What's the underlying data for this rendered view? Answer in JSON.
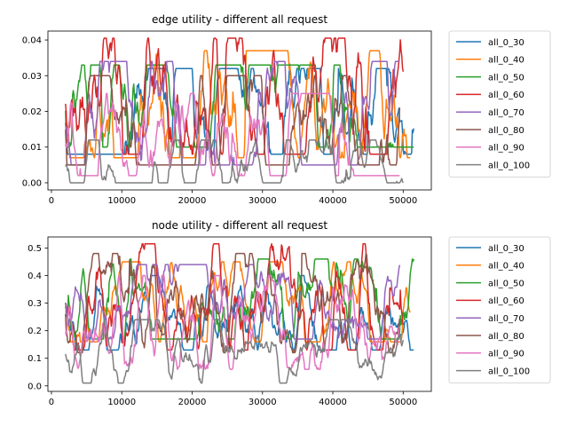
{
  "chart_data": [
    {
      "type": "line",
      "title": "edge utility - different all request",
      "xlabel": "",
      "ylabel": "",
      "xlim": [
        -500,
        54000
      ],
      "ylim": [
        -0.002,
        0.0425
      ],
      "xticks": [
        0,
        10000,
        20000,
        30000,
        40000,
        50000
      ],
      "xtick_labels": [
        "0",
        "10000",
        "20000",
        "30000",
        "40000",
        "50000"
      ],
      "yticks": [
        0.0,
        0.01,
        0.02,
        0.03,
        0.04
      ],
      "ytick_labels": [
        "0.00",
        "0.01",
        "0.02",
        "0.03",
        "0.04"
      ],
      "legend_position": "outside-right",
      "grid": false,
      "series": [
        {
          "name": "all_0_30",
          "color": "#1f77b4",
          "x_start": 2000,
          "x_end": 51500,
          "mean": 0.0195,
          "amp": 0.0085,
          "min": 0.008,
          "max": 0.032,
          "seed": 11
        },
        {
          "name": "all_0_40",
          "color": "#ff7f0e",
          "x_start": 2000,
          "x_end": 51000,
          "mean": 0.0195,
          "amp": 0.0085,
          "min": 0.007,
          "max": 0.037,
          "seed": 23
        },
        {
          "name": "all_0_50",
          "color": "#2ca02c",
          "x_start": 2000,
          "x_end": 51500,
          "mean": 0.021,
          "amp": 0.0085,
          "min": 0.01,
          "max": 0.033,
          "seed": 37
        },
        {
          "name": "all_0_60",
          "color": "#d62728",
          "x_start": 2000,
          "x_end": 50000,
          "mean": 0.021,
          "amp": 0.009,
          "min": 0.008,
          "max": 0.0405,
          "seed": 41
        },
        {
          "name": "all_0_70",
          "color": "#9467bd",
          "x_start": 2000,
          "x_end": 49500,
          "mean": 0.018,
          "amp": 0.008,
          "min": 0.005,
          "max": 0.034,
          "seed": 53
        },
        {
          "name": "all_0_80",
          "color": "#8c564b",
          "x_start": 2000,
          "x_end": 49500,
          "mean": 0.0165,
          "amp": 0.007,
          "min": 0.005,
          "max": 0.03,
          "seed": 67
        },
        {
          "name": "all_0_90",
          "color": "#e377c2",
          "x_start": 2000,
          "x_end": 49500,
          "mean": 0.011,
          "amp": 0.006,
          "min": 0.002,
          "max": 0.025,
          "seed": 71
        },
        {
          "name": "all_0_100",
          "color": "#7f7f7f",
          "x_start": 2000,
          "x_end": 50000,
          "mean": 0.0045,
          "amp": 0.0035,
          "min": 0.0,
          "max": 0.012,
          "seed": 83
        }
      ]
    },
    {
      "type": "line",
      "title": "node utility - different all request",
      "xlabel": "",
      "ylabel": "",
      "xlim": [
        -500,
        54000
      ],
      "ylim": [
        -0.02,
        0.54
      ],
      "xticks": [
        0,
        10000,
        20000,
        30000,
        40000,
        50000
      ],
      "xtick_labels": [
        "0",
        "10000",
        "20000",
        "30000",
        "40000",
        "50000"
      ],
      "yticks": [
        0.0,
        0.1,
        0.2,
        0.3,
        0.4,
        0.5
      ],
      "ytick_labels": [
        "0.0",
        "0.1",
        "0.2",
        "0.3",
        "0.4",
        "0.5"
      ],
      "legend_position": "outside-right",
      "grid": false,
      "series": [
        {
          "name": "all_0_30",
          "color": "#1f77b4",
          "x_start": 2000,
          "x_end": 51500,
          "mean": 0.27,
          "amp": 0.06,
          "min": 0.13,
          "max": 0.4,
          "seed": 101
        },
        {
          "name": "all_0_40",
          "color": "#ff7f0e",
          "x_start": 2000,
          "x_end": 51000,
          "mean": 0.29,
          "amp": 0.06,
          "min": 0.16,
          "max": 0.45,
          "seed": 113
        },
        {
          "name": "all_0_50",
          "color": "#2ca02c",
          "x_start": 2000,
          "x_end": 51500,
          "mean": 0.3,
          "amp": 0.065,
          "min": 0.17,
          "max": 0.46,
          "seed": 127
        },
        {
          "name": "all_0_60",
          "color": "#d62728",
          "x_start": 2000,
          "x_end": 50000,
          "mean": 0.29,
          "amp": 0.07,
          "min": 0.13,
          "max": 0.515,
          "seed": 131
        },
        {
          "name": "all_0_70",
          "color": "#9467bd",
          "x_start": 2000,
          "x_end": 49500,
          "mean": 0.3,
          "amp": 0.055,
          "min": 0.17,
          "max": 0.44,
          "seed": 149
        },
        {
          "name": "all_0_80",
          "color": "#8c564b",
          "x_start": 2000,
          "x_end": 49500,
          "mean": 0.27,
          "amp": 0.065,
          "min": 0.12,
          "max": 0.48,
          "seed": 157
        },
        {
          "name": "all_0_90",
          "color": "#e377c2",
          "x_start": 2000,
          "x_end": 49500,
          "mean": 0.22,
          "amp": 0.06,
          "min": 0.06,
          "max": 0.4,
          "seed": 163
        },
        {
          "name": "all_0_100",
          "color": "#7f7f7f",
          "x_start": 2000,
          "x_end": 50000,
          "mean": 0.11,
          "amp": 0.04,
          "min": 0.01,
          "max": 0.24,
          "seed": 173
        }
      ]
    }
  ]
}
